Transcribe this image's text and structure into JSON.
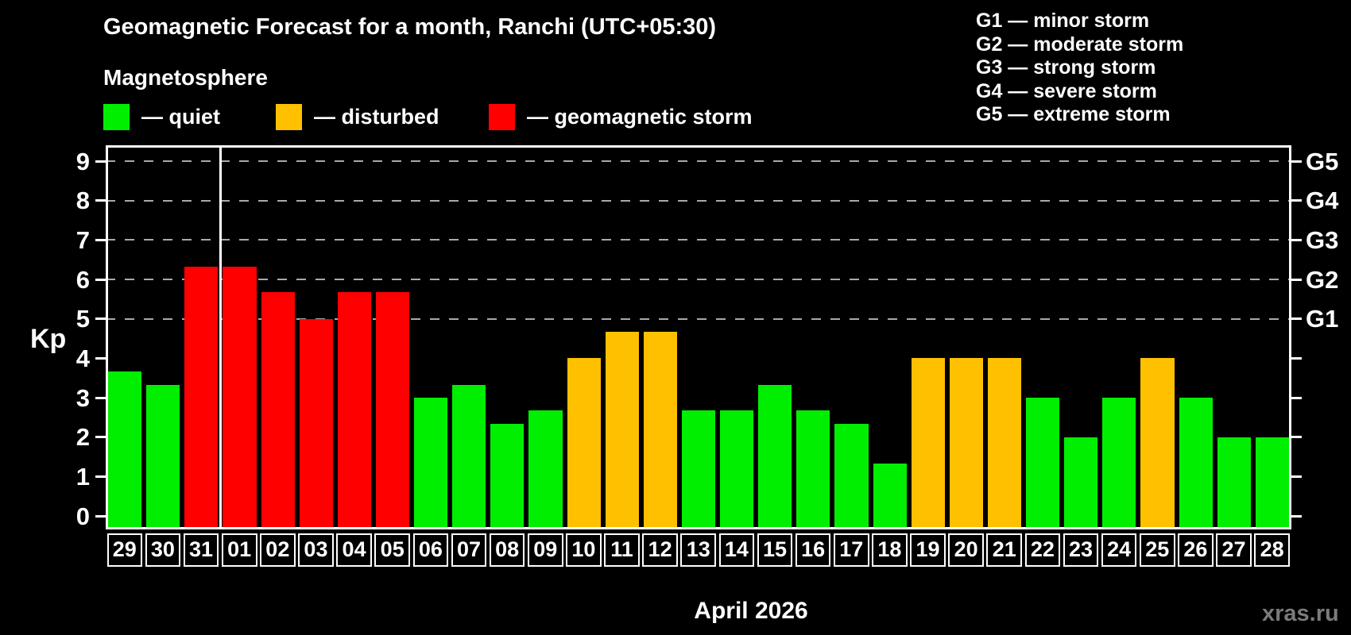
{
  "header": {
    "title": "Geomagnetic Forecast for a month, Ranchi (UTC+05:30)",
    "subtitle": "Magnetosphere"
  },
  "legend": {
    "items": [
      {
        "key": "quiet",
        "label": "— quiet"
      },
      {
        "key": "disturbed",
        "label": "— disturbed"
      },
      {
        "key": "storm",
        "label": "— geomagnetic storm"
      }
    ]
  },
  "g_legend": {
    "items": [
      "G1 — minor storm",
      "G2 — moderate storm",
      "G3 — strong storm",
      "G4 — severe storm",
      "G5 — extreme storm"
    ]
  },
  "axes": {
    "y_label": "Kp",
    "y_ticks": [
      0,
      1,
      2,
      3,
      4,
      5,
      6,
      7,
      8,
      9
    ],
    "g_ticks": [
      {
        "kp": 5,
        "label": "G1"
      },
      {
        "kp": 6,
        "label": "G2"
      },
      {
        "kp": 7,
        "label": "G3"
      },
      {
        "kp": 8,
        "label": "G4"
      },
      {
        "kp": 9,
        "label": "G5"
      }
    ],
    "x_label": "April 2026"
  },
  "watermark": "xras.ru",
  "chart_data": {
    "type": "bar",
    "title": "Geomagnetic Forecast for a month, Ranchi (UTC+05:30)",
    "xlabel": "April 2026",
    "ylabel": "Kp",
    "ylim": [
      -0.34,
      9.41
    ],
    "grid_kp_levels": [
      5,
      6,
      7,
      8,
      9
    ],
    "month_boundary_slot": 3,
    "categories": [
      "29",
      "30",
      "31",
      "01",
      "02",
      "03",
      "04",
      "05",
      "06",
      "07",
      "08",
      "09",
      "10",
      "11",
      "12",
      "13",
      "14",
      "15",
      "16",
      "17",
      "18",
      "19",
      "20",
      "21",
      "22",
      "23",
      "24",
      "25",
      "26",
      "27",
      "28"
    ],
    "values": [
      3.67,
      3.33,
      6.33,
      6.33,
      5.67,
      5.0,
      5.67,
      5.67,
      3.0,
      3.33,
      2.33,
      2.67,
      4.0,
      4.67,
      4.67,
      2.67,
      2.67,
      3.33,
      2.67,
      2.33,
      1.33,
      4.0,
      4.0,
      4.0,
      3.0,
      2.0,
      3.0,
      4.0,
      3.0,
      2.0,
      2.0
    ],
    "statuses": [
      "quiet",
      "quiet",
      "storm",
      "storm",
      "storm",
      "storm",
      "storm",
      "storm",
      "quiet",
      "quiet",
      "quiet",
      "quiet",
      "disturbed",
      "disturbed",
      "disturbed",
      "quiet",
      "quiet",
      "quiet",
      "quiet",
      "quiet",
      "quiet",
      "disturbed",
      "disturbed",
      "disturbed",
      "quiet",
      "quiet",
      "quiet",
      "disturbed",
      "quiet",
      "quiet",
      "quiet"
    ],
    "status_colors": {
      "quiet": "#00ef00",
      "disturbed": "#ffc000",
      "storm": "#ff0000"
    }
  }
}
